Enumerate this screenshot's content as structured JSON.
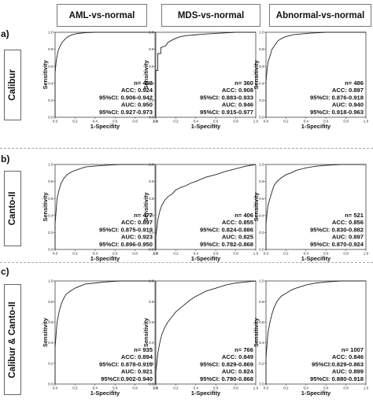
{
  "columns": [
    "AML-vs-normal",
    "MDS-vs-normal",
    "Abnormal-vs-normal"
  ],
  "rows": [
    {
      "letter": "a)",
      "label": "Calibur"
    },
    {
      "letter": "b)",
      "label": "Canto-II"
    },
    {
      "letter": "c)",
      "label": "Calibur & Canto-II"
    }
  ],
  "axes": {
    "xlabel": "1-Specifity",
    "ylabel": "Sensitivity",
    "xlim": [
      0,
      1
    ],
    "ylim": [
      0,
      1
    ],
    "ticks": [
      "0.0",
      "0.2",
      "0.4",
      "0.6",
      "0.8",
      "1.0"
    ],
    "tick_values": [
      0,
      0.2,
      0.4,
      0.6,
      0.8,
      1.0
    ]
  },
  "chart_data": [
    {
      "type": "line",
      "row": "Calibur",
      "column": "AML-vs-normal",
      "stats": [
        "n= 458",
        "ACC: 0.924",
        "95%CI: 0.906-0.942",
        "AUC: 0.950",
        "95%CI: 0.927-0.973"
      ],
      "x": [
        0,
        0,
        0.01,
        0.02,
        0.03,
        0.05,
        0.07,
        0.1,
        0.13,
        0.17,
        0.22,
        0.3,
        0.4,
        0.6,
        1.0
      ],
      "y": [
        0,
        0.52,
        0.65,
        0.72,
        0.78,
        0.84,
        0.88,
        0.92,
        0.95,
        0.97,
        0.985,
        0.995,
        1.0,
        1.0,
        1.0
      ]
    },
    {
      "type": "line",
      "row": "Calibur",
      "column": "MDS-vs-normal",
      "stats": [
        "n= 360",
        "ACC: 0.908",
        "95%CI: 0.883-0.933",
        "AUC: 0.946",
        "95%CI: 0.915-0.977"
      ],
      "x": [
        0,
        0,
        0.02,
        0.02,
        0.05,
        0.05,
        0.1,
        0.12,
        0.15,
        0.2,
        0.25,
        0.3,
        0.4,
        0.5,
        0.65,
        0.8,
        1.0
      ],
      "y": [
        0,
        0.55,
        0.55,
        0.75,
        0.75,
        0.82,
        0.84,
        0.88,
        0.9,
        0.93,
        0.95,
        0.96,
        0.97,
        0.98,
        0.99,
        1.0,
        1.0
      ]
    },
    {
      "type": "line",
      "row": "Calibur",
      "column": "Abnormal-vs-normal",
      "stats": [
        "n= 486",
        "ACC: 0.897",
        "95%CI: 0.876-0.918",
        "AUC: 0.940",
        "95%CI: 0.918-0.963"
      ],
      "x": [
        0,
        0,
        0.01,
        0.02,
        0.04,
        0.06,
        0.09,
        0.12,
        0.16,
        0.2,
        0.27,
        0.35,
        0.45,
        0.6,
        0.8,
        1.0
      ],
      "y": [
        0,
        0.42,
        0.55,
        0.65,
        0.72,
        0.8,
        0.85,
        0.9,
        0.93,
        0.95,
        0.97,
        0.98,
        0.99,
        1.0,
        1.0,
        1.0
      ]
    },
    {
      "type": "line",
      "row": "Canto-II",
      "column": "AML-vs-normal",
      "stats": [
        "n= 477",
        "ACC: 0.897",
        "95%CI: 0.875-0.919",
        "AUC: 0.923",
        "95%CI: 0.896-0.950"
      ],
      "x": [
        0,
        0,
        0.01,
        0.02,
        0.04,
        0.06,
        0.09,
        0.12,
        0.16,
        0.2,
        0.25,
        0.3,
        0.38,
        0.5,
        0.65,
        0.8,
        1.0
      ],
      "y": [
        0,
        0.3,
        0.45,
        0.6,
        0.7,
        0.78,
        0.84,
        0.88,
        0.91,
        0.93,
        0.95,
        0.97,
        0.98,
        0.99,
        1.0,
        1.0,
        1.0
      ]
    },
    {
      "type": "line",
      "row": "Canto-II",
      "column": "MDS-vs-normal",
      "stats": [
        "n= 406",
        "ACC: 0.855",
        "95%CI: 0.824-0.886",
        "AUC: 0.825",
        "95%CI: 0.782-0.868"
      ],
      "x": [
        0,
        0,
        0.01,
        0.02,
        0.04,
        0.06,
        0.09,
        0.12,
        0.16,
        0.2,
        0.25,
        0.3,
        0.35,
        0.4,
        0.5,
        0.6,
        0.7,
        0.8,
        0.9,
        1.0
      ],
      "y": [
        0,
        0.15,
        0.25,
        0.35,
        0.45,
        0.52,
        0.58,
        0.62,
        0.65,
        0.7,
        0.73,
        0.75,
        0.78,
        0.8,
        0.85,
        0.88,
        0.92,
        0.95,
        0.98,
        1.0
      ]
    },
    {
      "type": "line",
      "row": "Canto-II",
      "column": "Abnormal-vs-normal",
      "stats": [
        "n= 521",
        "ACC: 0.856",
        "95%CI: 0.830-0.882",
        "AUC: 0.897",
        "95%CI: 0.870-0.924"
      ],
      "x": [
        0,
        0,
        0.01,
        0.02,
        0.04,
        0.06,
        0.08,
        0.11,
        0.15,
        0.2,
        0.25,
        0.3,
        0.4,
        0.5,
        0.6,
        0.75,
        0.9,
        1.0
      ],
      "y": [
        0,
        0.3,
        0.42,
        0.52,
        0.6,
        0.68,
        0.75,
        0.8,
        0.84,
        0.88,
        0.9,
        0.93,
        0.96,
        0.98,
        0.99,
        1.0,
        1.0,
        1.0
      ]
    },
    {
      "type": "line",
      "row": "Calibur & Canto-II",
      "column": "AML-vs-normal",
      "stats": [
        "n= 935",
        "ACC: 0.894",
        "95%CI: 0.878-0.910",
        "AUC: 0.921",
        "95%CI:0.902-0.940"
      ],
      "x": [
        0,
        0,
        0.01,
        0.02,
        0.04,
        0.06,
        0.08,
        0.11,
        0.15,
        0.2,
        0.25,
        0.3,
        0.4,
        0.5,
        0.65,
        0.8,
        1.0
      ],
      "y": [
        0,
        0.35,
        0.48,
        0.6,
        0.7,
        0.77,
        0.82,
        0.87,
        0.9,
        0.93,
        0.95,
        0.97,
        0.98,
        0.99,
        1.0,
        1.0,
        1.0
      ]
    },
    {
      "type": "line",
      "row": "Calibur & Canto-II",
      "column": "MDS-vs-normal",
      "stats": [
        "n= 766",
        "ACC: 0.849",
        "95%CI: 0.829-0.869",
        "AUC: 0.824",
        "95%CI: 0.780-0.868"
      ],
      "x": [
        0,
        0,
        0.01,
        0.02,
        0.04,
        0.06,
        0.09,
        0.12,
        0.16,
        0.2,
        0.25,
        0.3,
        0.35,
        0.4,
        0.5,
        0.6,
        0.7,
        0.8,
        0.9,
        1.0
      ],
      "y": [
        0,
        0.12,
        0.2,
        0.3,
        0.4,
        0.48,
        0.55,
        0.6,
        0.65,
        0.7,
        0.74,
        0.78,
        0.82,
        0.85,
        0.9,
        0.93,
        0.96,
        0.98,
        0.99,
        1.0
      ]
    },
    {
      "type": "line",
      "row": "Calibur & Canto-II",
      "column": "Abnormal-vs-normal",
      "stats": [
        "n= 1007",
        "ACC: 0.846",
        "95%CI:0.829-0.863",
        "AUC: 0.899",
        "95%CI: 0.880-0.918"
      ],
      "x": [
        0,
        0,
        0.01,
        0.02,
        0.04,
        0.06,
        0.08,
        0.11,
        0.15,
        0.2,
        0.25,
        0.3,
        0.4,
        0.5,
        0.6,
        0.75,
        0.9,
        1.0
      ],
      "y": [
        0,
        0.25,
        0.38,
        0.5,
        0.6,
        0.68,
        0.74,
        0.8,
        0.85,
        0.88,
        0.91,
        0.93,
        0.96,
        0.98,
        0.99,
        1.0,
        1.0,
        1.0
      ]
    }
  ]
}
